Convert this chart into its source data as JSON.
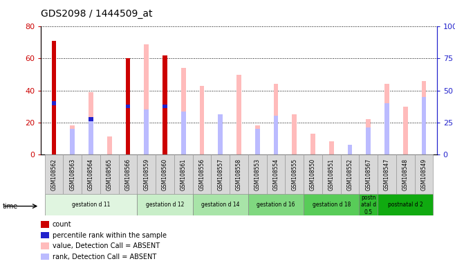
{
  "title": "GDS2098 / 1444509_at",
  "samples": [
    "GSM108562",
    "GSM108563",
    "GSM108564",
    "GSM108565",
    "GSM108566",
    "GSM108559",
    "GSM108560",
    "GSM108561",
    "GSM108556",
    "GSM108557",
    "GSM108558",
    "GSM108553",
    "GSM108554",
    "GSM108555",
    "GSM108550",
    "GSM108551",
    "GSM108552",
    "GSM108567",
    "GSM108547",
    "GSM108548",
    "GSM108549"
  ],
  "count_values": [
    71,
    0,
    0,
    0,
    60,
    0,
    62,
    0,
    0,
    0,
    0,
    0,
    0,
    0,
    0,
    0,
    0,
    0,
    0,
    0,
    0
  ],
  "percentile_values": [
    32,
    0,
    22,
    0,
    30,
    0,
    30,
    0,
    0,
    0,
    0,
    0,
    0,
    0,
    0,
    0,
    0,
    0,
    0,
    0,
    0
  ],
  "value_absent": [
    0,
    18,
    39,
    11,
    0,
    69,
    0,
    54,
    43,
    25,
    50,
    18,
    44,
    25,
    13,
    8,
    0,
    22,
    44,
    30,
    46
  ],
  "rank_absent": [
    0,
    16,
    22,
    0,
    0,
    28,
    0,
    27,
    0,
    25,
    0,
    16,
    24,
    0,
    0,
    0,
    6,
    17,
    32,
    0,
    36
  ],
  "ylim_left": [
    0,
    80
  ],
  "ylim_right": [
    0,
    100
  ],
  "yticks_left": [
    0,
    20,
    40,
    60,
    80
  ],
  "yticks_right": [
    0,
    25,
    50,
    75,
    100
  ],
  "groups": [
    {
      "label": "gestation d 11",
      "start": 0,
      "end": 4,
      "color": "#e0f5e0"
    },
    {
      "label": "gestation d 12",
      "start": 5,
      "end": 7,
      "color": "#c8eec8"
    },
    {
      "label": "gestation d 14",
      "start": 8,
      "end": 10,
      "color": "#a8e4a8"
    },
    {
      "label": "gestation d 16",
      "start": 11,
      "end": 13,
      "color": "#80d880"
    },
    {
      "label": "gestation d 18",
      "start": 14,
      "end": 16,
      "color": "#58cc58"
    },
    {
      "label": "postn\natal d\n0.5",
      "start": 17,
      "end": 17,
      "color": "#30bb30"
    },
    {
      "label": "postnatal d 2",
      "start": 18,
      "end": 20,
      "color": "#10aa10"
    }
  ],
  "bar_width": 0.25,
  "count_color": "#cc0000",
  "percentile_color": "#2222cc",
  "value_absent_color": "#ffbbbb",
  "rank_absent_color": "#bbbbff",
  "left_axis_color": "#cc0000",
  "right_axis_color": "#2222cc",
  "tick_label_bg": "#d8d8d8",
  "figure_width": 6.58,
  "figure_height": 3.84,
  "dpi": 100
}
